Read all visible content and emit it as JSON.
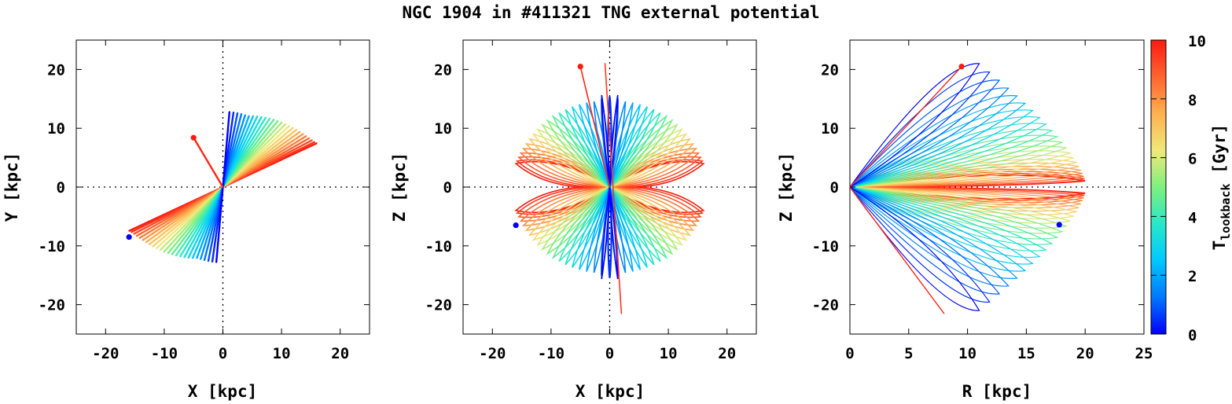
{
  "title": "NGC 1904 in #411321 TNG external potential",
  "colorbar": {
    "label_main": "T",
    "label_sub": "lookback",
    "label_unit": " [Gyr]",
    "range": [
      0,
      10
    ],
    "ticks": [
      "0",
      "2",
      "4",
      "6",
      "8",
      "10"
    ],
    "colormap": [
      "#0000ff",
      "#0078ff",
      "#00c8ff",
      "#27e8c8",
      "#7ef07e",
      "#f0e87a",
      "#ffb050",
      "#ff6430",
      "#ff1a10"
    ]
  },
  "chart_data": [
    {
      "type": "line",
      "panel": "x-y",
      "xlabel": "X [kpc]",
      "ylabel": "Y [kpc]",
      "xlim": [
        -25,
        25
      ],
      "ylim": [
        -25,
        25
      ],
      "xticks": [
        "-20",
        "-10",
        "0",
        "10",
        "20"
      ],
      "yticks": [
        "-20",
        "-10",
        "0",
        "10",
        "20"
      ],
      "series": [
        {
          "name": "orbit",
          "description": "radial fan of orbit segments colored by lookback time"
        }
      ],
      "markers": [
        {
          "name": "present-day",
          "x": -16,
          "y": -8.5,
          "color": "#0000ff"
        },
        {
          "name": "initial",
          "x": -5,
          "y": 8.4,
          "color": "#ff1a10"
        }
      ]
    },
    {
      "type": "line",
      "panel": "x-z",
      "xlabel": "X [kpc]",
      "ylabel": "Z [kpc]",
      "xlim": [
        -25,
        25
      ],
      "ylim": [
        -25,
        25
      ],
      "xticks": [
        "-20",
        "-10",
        "0",
        "10",
        "20"
      ],
      "yticks": [
        "-20",
        "-10",
        "0",
        "10",
        "20"
      ],
      "series": [
        {
          "name": "orbit",
          "description": "loops through the origin colored by lookback time"
        }
      ],
      "markers": [
        {
          "name": "present-day",
          "x": -16,
          "y": -6.5,
          "color": "#0000ff"
        },
        {
          "name": "initial",
          "x": -5,
          "y": 20.5,
          "color": "#ff1a10"
        }
      ]
    },
    {
      "type": "line",
      "panel": "r-z",
      "xlabel": "R [kpc]",
      "ylabel": "Z [kpc]",
      "xlim": [
        0,
        25
      ],
      "ylim": [
        -25,
        25
      ],
      "xticks": [
        "0",
        "5",
        "10",
        "15",
        "20",
        "25"
      ],
      "yticks": [
        "-20",
        "-10",
        "0",
        "10",
        "20"
      ],
      "series": [
        {
          "name": "orbit",
          "description": "elongated loops from the origin colored by lookback time"
        }
      ],
      "markers": [
        {
          "name": "present-day",
          "x": 17.8,
          "y": -6.4,
          "color": "#0000ff"
        },
        {
          "name": "initial",
          "x": 9.5,
          "y": 20.5,
          "color": "#ff1a10"
        }
      ]
    }
  ]
}
